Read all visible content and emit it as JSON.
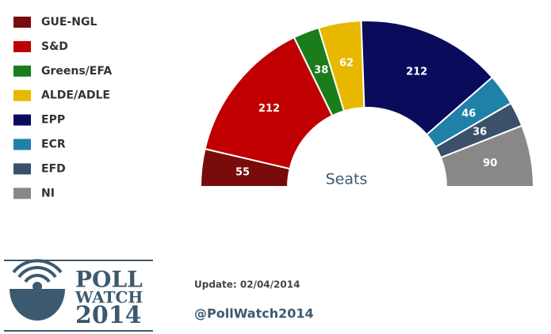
{
  "chart_data": {
    "type": "pie",
    "center_label": "Seats",
    "categories": [
      "GUE-NGL",
      "S&D",
      "Greens/EFA",
      "ALDE/ADLE",
      "EPP",
      "ECR",
      "EFD",
      "NI"
    ],
    "values": [
      55,
      212,
      38,
      62,
      212,
      46,
      36,
      90
    ],
    "colors": [
      "#7a0b0b",
      "#c00000",
      "#1a7c1a",
      "#e8b800",
      "#0b0b5c",
      "#1f80a8",
      "#3a5169",
      "#888888"
    ]
  },
  "footer": {
    "update": "Update: 02/04/2014",
    "handle": "@PollWatch2014",
    "logo": [
      "POLL",
      "WATCH",
      "2014"
    ]
  }
}
